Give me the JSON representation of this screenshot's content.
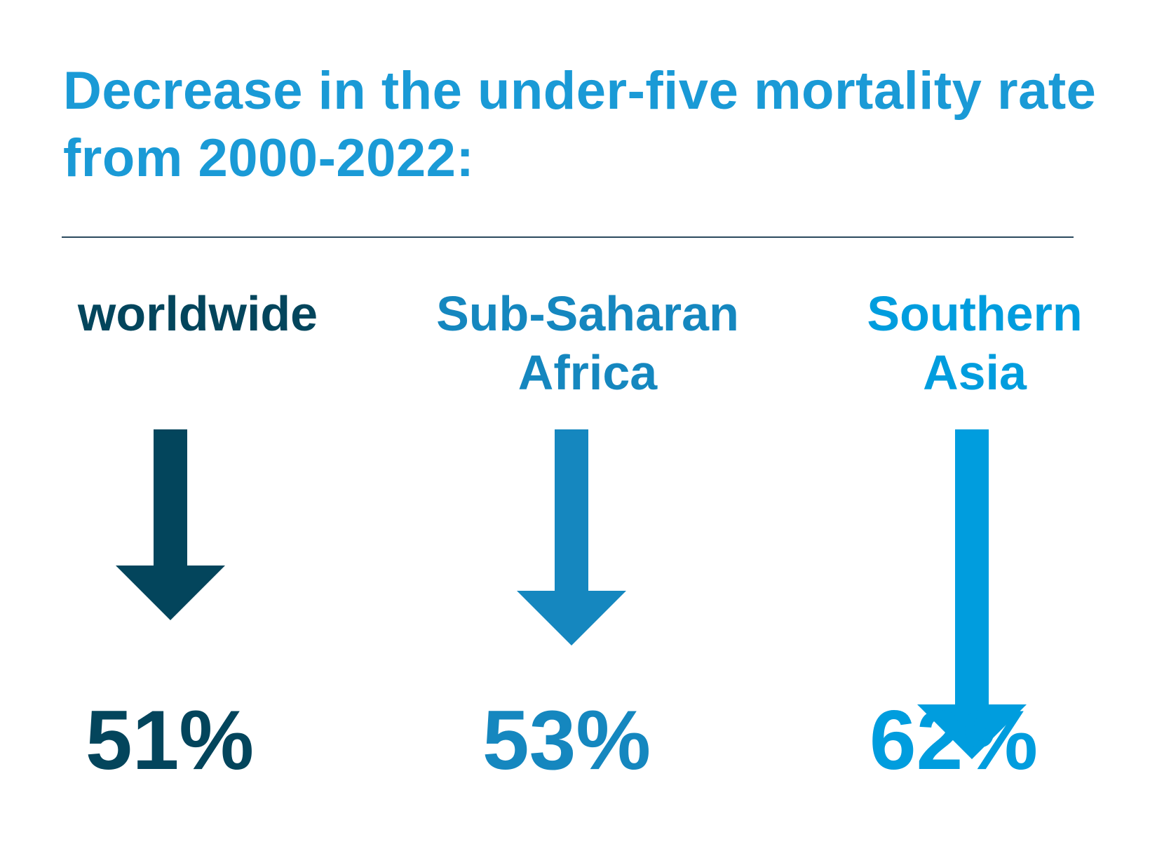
{
  "chart_data": {
    "type": "bar",
    "title": "Decrease in the under-five mortality rate from 2000-2022:",
    "categories": [
      "worldwide",
      "Sub-Saharan\nAfrica",
      "Southern\nAsia"
    ],
    "values": [
      51,
      53,
      62
    ],
    "value_labels": [
      "51%",
      "53%",
      "62%"
    ],
    "unit": "%",
    "orientation": "down",
    "colors": [
      "#03455c",
      "#1587bf",
      "#009dde"
    ]
  }
}
